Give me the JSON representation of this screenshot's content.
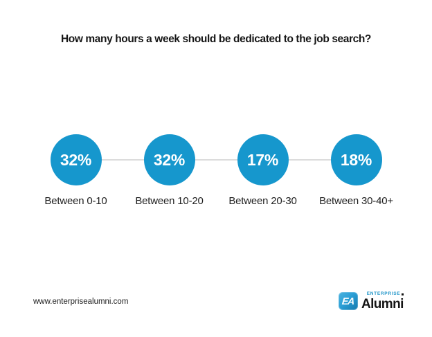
{
  "title": "How many hours a week should be dedicated to the job search?",
  "chart_data": {
    "type": "bar",
    "variant": "stat-circle-row",
    "title": "How many hours a week should be dedicated to the job search?",
    "categories": [
      "Between 0-10",
      "Between 10-20",
      "Between 20-30",
      "Between 30-40+"
    ],
    "values": [
      32,
      32,
      17,
      18
    ],
    "unit": "%",
    "legend": "none",
    "grid": "off",
    "items": [
      {
        "value_label": "32%",
        "category": "Between 0-10"
      },
      {
        "value_label": "32%",
        "category": "Between 10-20"
      },
      {
        "value_label": "17%",
        "category": "Between 20-30"
      },
      {
        "value_label": "18%",
        "category": "Between 30-40+"
      }
    ],
    "colors": {
      "circle": "#1697CD",
      "connector": "#DCDCDC",
      "value_text": "#FFFFFF",
      "label_text": "#1F1F1F",
      "title_text": "#161616"
    }
  },
  "footer": {
    "website": "www.enterprisealumni.com",
    "logo": {
      "monogram": "EA",
      "brand_top": "ENTERPRISE",
      "brand_main": "Alumni",
      "tile_color": "#2B9FD6",
      "enterprise_color": "#2196C9"
    }
  }
}
